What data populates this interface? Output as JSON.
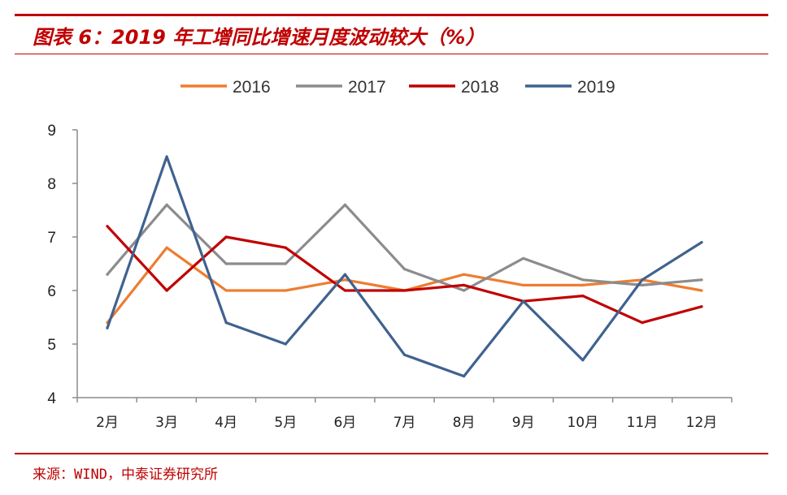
{
  "header": {
    "title": "图表 6：2019 年工增同比增速月度波动较大（%）"
  },
  "footer": {
    "source": "来源：WIND，中泰证券研究所"
  },
  "colors": {
    "accent": "#c00000"
  },
  "chart_data": {
    "type": "line",
    "title": "",
    "xlabel": "",
    "ylabel": "",
    "categories": [
      "2月",
      "3月",
      "4月",
      "5月",
      "6月",
      "7月",
      "8月",
      "9月",
      "10月",
      "11月",
      "12月"
    ],
    "ylim": [
      4,
      9
    ],
    "yticks": [
      "4",
      "5",
      "6",
      "7",
      "8",
      "9"
    ],
    "legend_position": "top-center",
    "grid": false,
    "series": [
      {
        "name": "2016",
        "color": "#ed7d31",
        "values": [
          5.4,
          6.8,
          6.0,
          6.0,
          6.2,
          6.0,
          6.3,
          6.1,
          6.1,
          6.2,
          6.0
        ]
      },
      {
        "name": "2017",
        "color": "#8c8c8c",
        "values": [
          6.3,
          7.6,
          6.5,
          6.5,
          7.6,
          6.4,
          6.0,
          6.6,
          6.2,
          6.1,
          6.2
        ]
      },
      {
        "name": "2018",
        "color": "#c00000",
        "values": [
          7.2,
          6.0,
          7.0,
          6.8,
          6.0,
          6.0,
          6.1,
          5.8,
          5.9,
          5.4,
          5.7
        ]
      },
      {
        "name": "2019",
        "color": "#3f6290",
        "values": [
          5.3,
          8.5,
          5.4,
          5.0,
          6.3,
          4.8,
          4.4,
          5.8,
          4.7,
          6.2,
          6.9
        ]
      }
    ]
  }
}
